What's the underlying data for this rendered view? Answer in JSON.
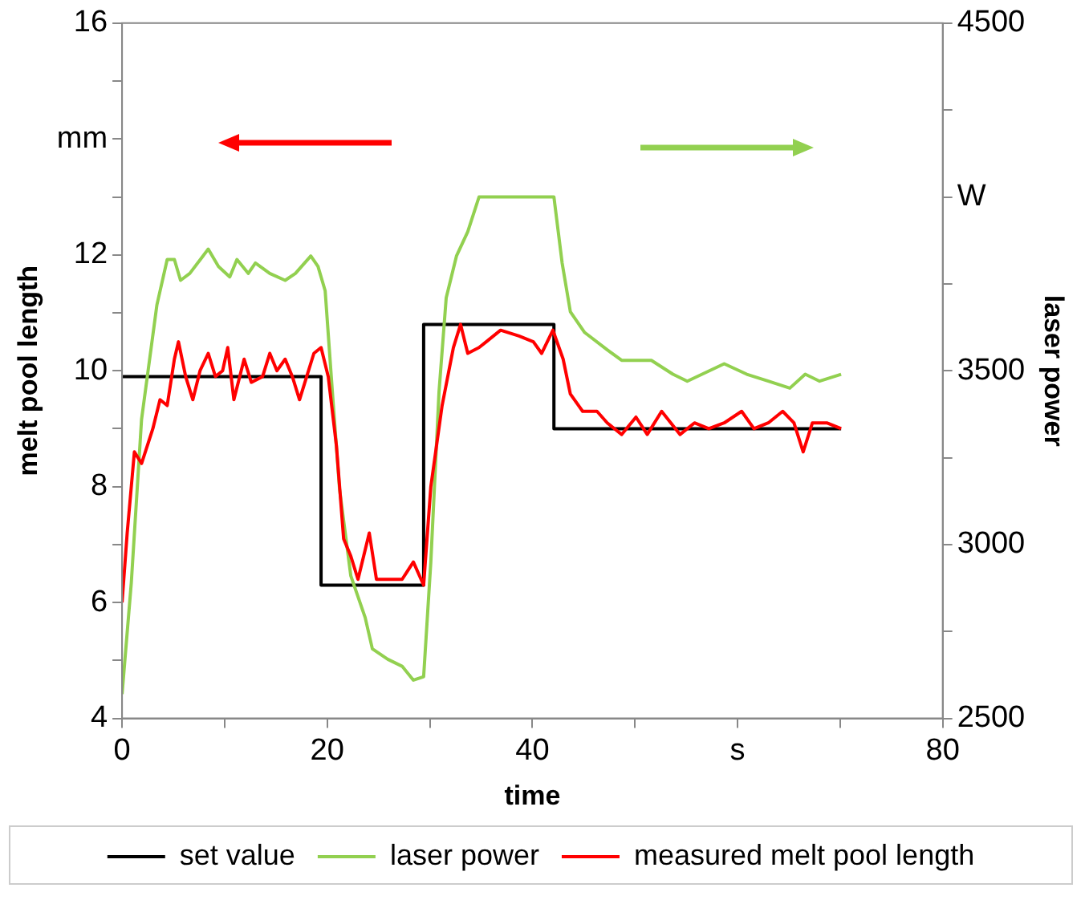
{
  "chart_data": {
    "type": "line",
    "xlabel": "time",
    "ylabel": "melt pool length",
    "y2label": "laser power",
    "xlim": [
      0,
      80
    ],
    "xticks": [
      0,
      {
        "value": 10,
        "label": null
      },
      20,
      {
        "value": 30,
        "label": null
      },
      40,
      {
        "value": 50,
        "label": null
      },
      {
        "value": 60,
        "label": "s"
      },
      {
        "value": 70,
        "label": null
      },
      80
    ],
    "ylim": [
      4,
      16
    ],
    "yticks": [
      4,
      {
        "value": 5,
        "label": null
      },
      6,
      {
        "value": 7,
        "label": null
      },
      8,
      {
        "value": 9,
        "label": null
      },
      10,
      {
        "value": 11,
        "label": null
      },
      12,
      {
        "value": 13,
        "label": null
      },
      {
        "value": 14,
        "label": "mm"
      },
      {
        "value": 15,
        "label": null
      },
      16
    ],
    "y2lim": [
      2500,
      4500
    ],
    "y2ticks": [
      2500,
      {
        "value": 2750,
        "label": null
      },
      3000,
      {
        "value": 3250,
        "label": null
      },
      3500,
      {
        "value": 3750,
        "label": null
      },
      {
        "value": 4000,
        "label": "W"
      },
      {
        "value": 4250,
        "label": null
      },
      4500
    ],
    "grid": false,
    "legend": "bottom",
    "marker": "none",
    "line_style": "solid",
    "series": [
      {
        "name": "set value",
        "color": "#000000",
        "x": [
          0,
          19.4,
          19.4,
          29.4,
          29.4,
          42.1,
          42.1,
          70.1
        ],
        "values": [
          9.9,
          9.9,
          6.3,
          6.3,
          10.8,
          10.8,
          9.0,
          9.0
        ]
      },
      {
        "name": "laser power",
        "color": "#92d050",
        "axis": "y2",
        "x": [
          0,
          0.9,
          1.9,
          3.4,
          4.4,
          5.1,
          5.7,
          6.6,
          8.4,
          9.4,
          10.5,
          11.2,
          12.3,
          13,
          14.4,
          15.9,
          16.9,
          18.4,
          19.1,
          19.8,
          20.5,
          21.2,
          22.3,
          23.7,
          24.4,
          25.9,
          27.3,
          28.4,
          29.4,
          30.1,
          30.9,
          31.6,
          32.6,
          33.7,
          34.8,
          38,
          42.1,
          42.9,
          43.7,
          45.1,
          47.3,
          48.7,
          51.6,
          53.7,
          55.1,
          58.7,
          60.9,
          63,
          65.1,
          66.6,
          68,
          70.1
        ],
        "values": [
          2570,
          2890,
          3360,
          3690,
          3820,
          3820,
          3760,
          3780,
          3850,
          3800,
          3770,
          3820,
          3780,
          3810,
          3780,
          3760,
          3780,
          3830,
          3800,
          3730,
          3440,
          3160,
          2910,
          2790,
          2700,
          2670,
          2650,
          2610,
          2620,
          2950,
          3440,
          3710,
          3830,
          3900,
          4000,
          4000,
          4000,
          3810,
          3670,
          3610,
          3560,
          3530,
          3530,
          3490,
          3470,
          3520,
          3490,
          3470,
          3450,
          3490,
          3470,
          3490
        ]
      },
      {
        "name": "measured melt pool length",
        "color": "#ff0000",
        "x": [
          0,
          0.5,
          1.2,
          1.9,
          3,
          3.7,
          4.4,
          5.1,
          5.5,
          6.2,
          6.9,
          7.6,
          8.4,
          9.1,
          9.8,
          10.3,
          10.9,
          11.9,
          12.6,
          13.7,
          14.4,
          15.1,
          15.9,
          16.6,
          17.3,
          18,
          18.7,
          19.4,
          20.1,
          20.9,
          21.6,
          22.3,
          23,
          24.1,
          24.8,
          25.9,
          27.3,
          28.4,
          29.4,
          30.1,
          31.2,
          32.3,
          33,
          33.7,
          34.8,
          35.5,
          36.9,
          38.7,
          40.1,
          40.9,
          42,
          43,
          43.7,
          44.9,
          46.3,
          47.3,
          48.7,
          50.1,
          51.2,
          52.6,
          54.4,
          55.8,
          57.2,
          58.7,
          60.4,
          61.6,
          63,
          64.4,
          65.5,
          66.4,
          67.3,
          68.7,
          70.1
        ],
        "values": [
          6.0,
          7.2,
          8.6,
          8.4,
          9.0,
          9.5,
          9.4,
          10.2,
          10.5,
          9.9,
          9.5,
          10.0,
          10.3,
          9.9,
          10.0,
          10.4,
          9.5,
          10.2,
          9.8,
          9.9,
          10.3,
          10.0,
          10.2,
          9.9,
          9.5,
          9.9,
          10.3,
          10.4,
          9.9,
          8.7,
          7.1,
          6.8,
          6.4,
          7.2,
          6.4,
          6.4,
          6.4,
          6.7,
          6.3,
          8.0,
          9.4,
          10.4,
          10.8,
          10.3,
          10.4,
          10.5,
          10.7,
          10.6,
          10.5,
          10.3,
          10.7,
          10.2,
          9.6,
          9.3,
          9.3,
          9.1,
          8.9,
          9.2,
          8.9,
          9.3,
          8.9,
          9.1,
          9.0,
          9.1,
          9.3,
          9.0,
          9.1,
          9.3,
          9.1,
          8.6,
          9.1,
          9.1,
          9.0
        ]
      }
    ]
  }
}
